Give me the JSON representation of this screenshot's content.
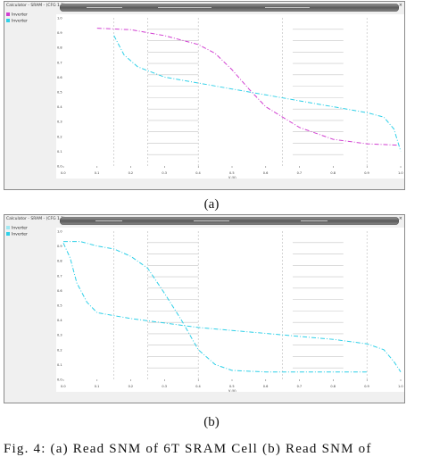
{
  "panels": [
    {
      "id": "a",
      "window_title": "Calculator - SRAM - (CFG 1.1)",
      "legend": [
        {
          "name": "Inverter",
          "color": "#d13fd1"
        },
        {
          "name": "Inverter",
          "color": "#2fd0e8"
        }
      ],
      "ylabel": "V (V)",
      "xlabel": "V (V)",
      "y_ticks": [
        "1.0",
        "0.9",
        "0.8",
        "0.7",
        "0.6",
        "0.5",
        "0.4",
        "0.3",
        "0.2",
        "0.1",
        "0.0"
      ],
      "x_ticks": [
        "0.0",
        "0.1",
        "0.2",
        "0.3",
        "0.4",
        "0.5",
        "0.6",
        "0.7",
        "0.8",
        "0.9",
        "1.0"
      ],
      "caption": "(a)"
    },
    {
      "id": "b",
      "window_title": "Calculator - SRAM - (CFG 1.1)",
      "legend": [
        {
          "name": "Inverter",
          "color": "#9fe8f2"
        },
        {
          "name": "Inverter",
          "color": "#2fd0e8"
        }
      ],
      "ylabel": "V (V)",
      "xlabel": "V (V)",
      "y_ticks": [
        "1.0",
        "0.9",
        "0.8",
        "0.7",
        "0.6",
        "0.5",
        "0.4",
        "0.3",
        "0.2",
        "0.1",
        "0.0"
      ],
      "x_ticks": [
        "0.0",
        "0.1",
        "0.2",
        "0.3",
        "0.4",
        "0.5",
        "0.6",
        "0.7",
        "0.8",
        "0.9",
        "1.0"
      ],
      "caption": "(b)"
    }
  ],
  "figure_caption": "Fig. 4: (a) Read SNM of 6T SRAM Cell (b) Read SNM of",
  "chart_data": [
    {
      "type": "line",
      "xlim": [
        0,
        1.0
      ],
      "ylim": [
        0,
        1.0
      ],
      "grid": true,
      "series": [
        {
          "color": "#d13fd1",
          "style": "dash-dot",
          "x": [
            0.1,
            0.2,
            0.3,
            0.4,
            0.45,
            0.5,
            0.55,
            0.6,
            0.7,
            0.8,
            0.9,
            1.0
          ],
          "y": [
            0.93,
            0.92,
            0.88,
            0.82,
            0.76,
            0.65,
            0.52,
            0.4,
            0.26,
            0.18,
            0.15,
            0.14
          ]
        },
        {
          "color": "#2fd0e8",
          "style": "dash-dot",
          "x": [
            0.15,
            0.18,
            0.22,
            0.3,
            0.4,
            0.5,
            0.6,
            0.7,
            0.8,
            0.9,
            0.95,
            0.98,
            1.0
          ],
          "y": [
            0.88,
            0.75,
            0.67,
            0.6,
            0.56,
            0.52,
            0.48,
            0.44,
            0.4,
            0.36,
            0.33,
            0.25,
            0.1
          ]
        }
      ]
    },
    {
      "type": "line",
      "xlim": [
        0,
        1.0
      ],
      "ylim": [
        0,
        1.0
      ],
      "grid": true,
      "series": [
        {
          "color": "#2fd0e8",
          "style": "dash-dot",
          "x": [
            0.0,
            0.05,
            0.1,
            0.15,
            0.2,
            0.25,
            0.3,
            0.35,
            0.4,
            0.45,
            0.5,
            0.6,
            0.7,
            0.8,
            0.9
          ],
          "y": [
            0.93,
            0.93,
            0.9,
            0.88,
            0.83,
            0.75,
            0.58,
            0.4,
            0.2,
            0.1,
            0.06,
            0.05,
            0.05,
            0.05,
            0.05
          ]
        },
        {
          "color": "#2fd0e8",
          "style": "dash-dot",
          "x": [
            0.0,
            0.02,
            0.04,
            0.07,
            0.1,
            0.2,
            0.3,
            0.4,
            0.5,
            0.6,
            0.7,
            0.8,
            0.9,
            0.95,
            0.98,
            1.0
          ],
          "y": [
            0.92,
            0.82,
            0.65,
            0.52,
            0.45,
            0.41,
            0.38,
            0.35,
            0.33,
            0.31,
            0.29,
            0.27,
            0.24,
            0.2,
            0.12,
            0.05
          ]
        }
      ]
    }
  ]
}
